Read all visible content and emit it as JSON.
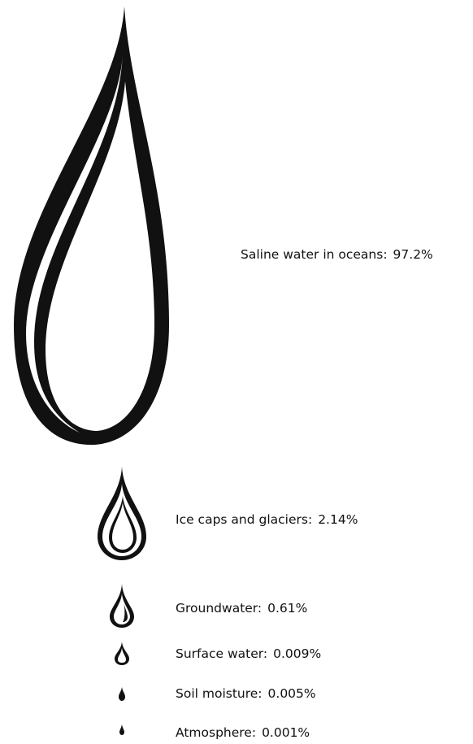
{
  "items": [
    {
      "label": "Saline water in oceans:",
      "amount": "97.2%"
    },
    {
      "label": "Ice caps and glaciers:",
      "amount": "2.14%"
    },
    {
      "label": "Groundwater:",
      "amount": "0.61%"
    },
    {
      "label": "Surface water:",
      "amount": "0.009%"
    },
    {
      "label": "Soil moisture:",
      "amount": "0.005%"
    },
    {
      "label": "Atmosphere:",
      "amount": "0.001%"
    }
  ]
}
